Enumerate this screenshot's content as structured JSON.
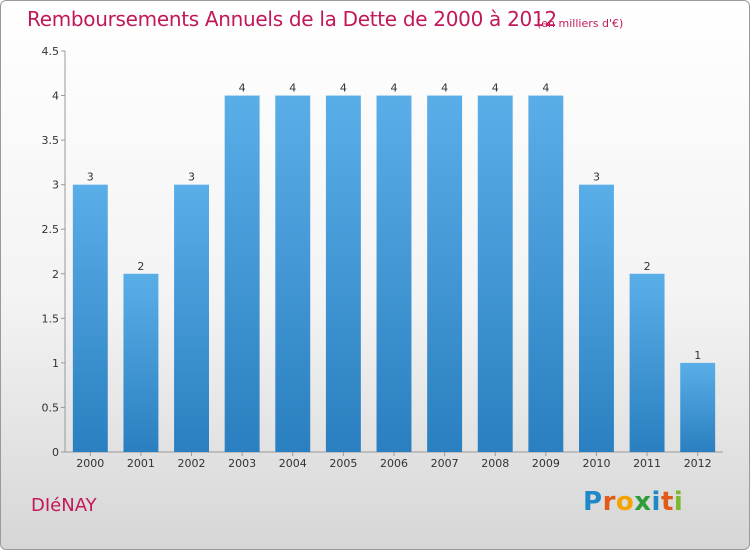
{
  "title": "Remboursements Annuels de la Dette de 2000 à 2012",
  "subtitle": "(en milliers d'€)",
  "commune": "DIéNAY",
  "logo": {
    "letters": [
      "P",
      "r",
      "o",
      "x",
      "i",
      "t",
      "i"
    ],
    "colors": [
      "#1e88c8",
      "#e05a1a",
      "#f4a300",
      "#2e9e3a",
      "#1e88c8",
      "#e05a1a",
      "#7cb82f"
    ]
  },
  "colors": {
    "bar_top": "#5aaee8",
    "bar_bottom": "#2a7fc0",
    "title": "#c2185b"
  },
  "chart_data": {
    "type": "bar",
    "title": "Remboursements Annuels de la Dette de 2000 à 2012",
    "subtitle": "(en milliers d'€)",
    "categories": [
      "2000",
      "2001",
      "2002",
      "2003",
      "2004",
      "2005",
      "2006",
      "2007",
      "2008",
      "2009",
      "2010",
      "2011",
      "2012"
    ],
    "values": [
      3,
      2,
      3,
      4,
      4,
      4,
      4,
      4,
      4,
      4,
      3,
      2,
      1
    ],
    "data_labels": [
      "3",
      "2",
      "3",
      "4",
      "4",
      "4",
      "4",
      "4",
      "4",
      "4",
      "3",
      "2",
      "1"
    ],
    "y_ticks": [
      "0",
      "0.5",
      "1",
      "1.5",
      "2",
      "2.5",
      "3",
      "3.5",
      "4",
      "4.5"
    ],
    "ylim": [
      0,
      4.5
    ],
    "grid": false,
    "legend": "none"
  }
}
